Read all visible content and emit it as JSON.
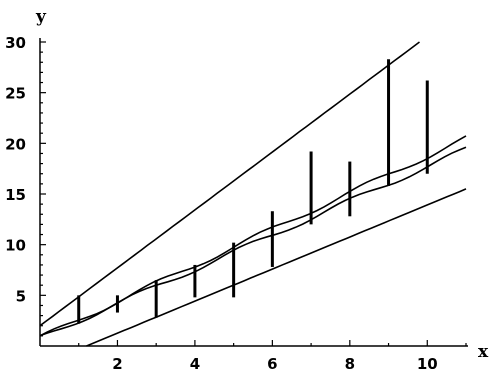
{
  "chart_data": {
    "type": "line",
    "xlabel": "x",
    "ylabel": "y",
    "xlim": [
      0,
      11
    ],
    "ylim": [
      0,
      30
    ],
    "x_ticks": [
      2,
      4,
      6,
      8,
      10
    ],
    "y_ticks": [
      5,
      10,
      15,
      20,
      25,
      30
    ],
    "grid": false,
    "legend": "none",
    "series": [
      {
        "x": [
          0,
          9.8
        ],
        "y": [
          2,
          30
        ]
      },
      {
        "x": [
          0,
          11
        ],
        "y": [
          0.8,
          20.5
        ]
      },
      {
        "x": [
          0,
          11
        ],
        "y": [
          0.8,
          19.4
        ]
      },
      {
        "x": [
          1.2,
          11
        ],
        "y": [
          0,
          15.5
        ]
      }
    ],
    "interval_bars": [
      {
        "x": 1,
        "low": 2.2,
        "high": 5.0
      },
      {
        "x": 2,
        "low": 3.3,
        "high": 5.0
      },
      {
        "x": 3,
        "low": 2.8,
        "high": 6.5
      },
      {
        "x": 4,
        "low": 4.8,
        "high": 8.0
      },
      {
        "x": 5,
        "low": 4.8,
        "high": 10.2
      },
      {
        "x": 6,
        "low": 7.8,
        "high": 13.3
      },
      {
        "x": 7,
        "low": 12.0,
        "high": 19.2
      },
      {
        "x": 8,
        "low": 12.8,
        "high": 18.2
      },
      {
        "x": 9,
        "low": 15.8,
        "high": 28.3
      },
      {
        "x": 10,
        "low": 17.0,
        "high": 26.2
      }
    ]
  }
}
